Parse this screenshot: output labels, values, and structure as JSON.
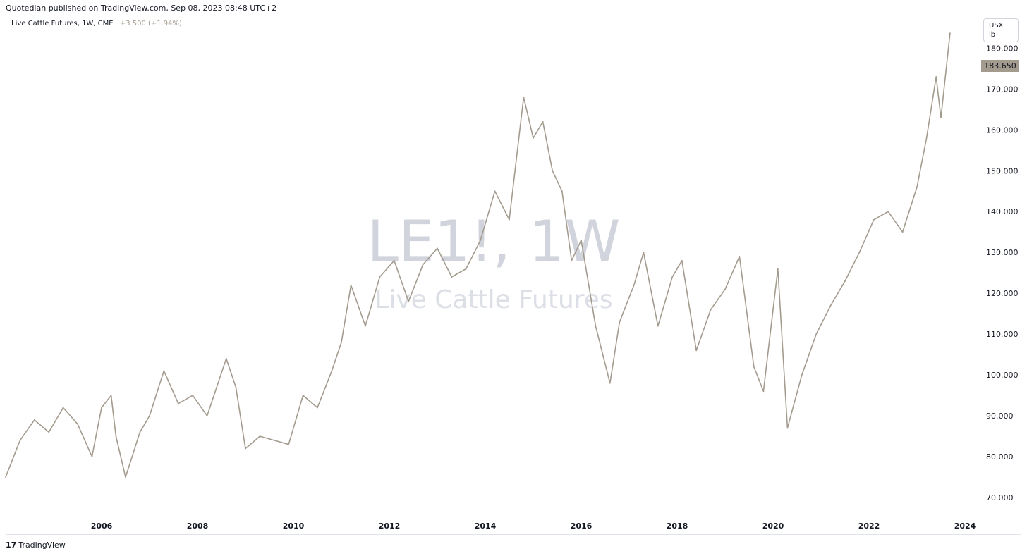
{
  "header": {
    "published": "Quotedian published on TradingView.com, Sep 08, 2023 08:48 UTC+2"
  },
  "legend": {
    "symbol": "Live Cattle Futures, 1W, CME",
    "change": "+3.500 (+1.94%)"
  },
  "unit": {
    "line1": "USX",
    "line2": "lb"
  },
  "watermark": {
    "ticker": "LE1!, 1W",
    "name": "Live Cattle Futures"
  },
  "footer": {
    "brand": "TradingView",
    "logo_icon": "tradingview-logo-icon"
  },
  "colors": {
    "line": "#a49b8f",
    "price_label": "#a49b8f",
    "watermark": "#d1d4dc"
  },
  "chart_data": {
    "type": "line",
    "title": "",
    "xlabel": "",
    "ylabel": "",
    "grid": false,
    "last_price": "183.650",
    "xlim": [
      2004.0,
      2024.25
    ],
    "ylim": [
      65,
      188
    ],
    "x_ticks": [
      "2006",
      "2008",
      "2010",
      "2012",
      "2014",
      "2016",
      "2018",
      "2020",
      "2022",
      "2024"
    ],
    "y_ticks": [
      "70.000",
      "80.000",
      "90.000",
      "100.000",
      "110.000",
      "120.000",
      "130.000",
      "140.000",
      "150.000",
      "160.000",
      "170.000",
      "180.000"
    ],
    "series": [
      {
        "x": [
          2004.0,
          2004.3,
          2004.6,
          2004.9,
          2005.2,
          2005.5,
          2005.8,
          2006.0,
          2006.2,
          2006.3,
          2006.5,
          2006.8,
          2007.0,
          2007.3,
          2007.6,
          2007.9,
          2008.2,
          2008.4,
          2008.6,
          2008.8,
          2009.0,
          2009.3,
          2009.6,
          2009.9,
          2010.2,
          2010.5,
          2010.8,
          2011.0,
          2011.2,
          2011.5,
          2011.8,
          2012.1,
          2012.4,
          2012.7,
          2013.0,
          2013.3,
          2013.6,
          2013.9,
          2014.2,
          2014.5,
          2014.8,
          2015.0,
          2015.2,
          2015.4,
          2015.6,
          2015.8,
          2016.0,
          2016.3,
          2016.6,
          2016.8,
          2017.1,
          2017.3,
          2017.6,
          2017.9,
          2018.1,
          2018.4,
          2018.7,
          2019.0,
          2019.3,
          2019.6,
          2019.8,
          2020.1,
          2020.3,
          2020.6,
          2020.9,
          2021.2,
          2021.5,
          2021.8,
          2022.1,
          2022.4,
          2022.7,
          2023.0,
          2023.2,
          2023.4,
          2023.5,
          2023.69
        ],
        "y": [
          75,
          84,
          89,
          86,
          92,
          88,
          80,
          92,
          95,
          85,
          75,
          86,
          90,
          101,
          93,
          95,
          90,
          97,
          104,
          97,
          82,
          85,
          84,
          83,
          95,
          92,
          101,
          108,
          122,
          112,
          124,
          128,
          118,
          127,
          131,
          124,
          126,
          133,
          145,
          138,
          168,
          158,
          162,
          150,
          145,
          128,
          133,
          112,
          98,
          113,
          122,
          130,
          112,
          124,
          128,
          106,
          116,
          121,
          129,
          102,
          96,
          126,
          87,
          100,
          110,
          117,
          123,
          130,
          138,
          140,
          135,
          146,
          158,
          173,
          163,
          183.65
        ]
      }
    ]
  }
}
